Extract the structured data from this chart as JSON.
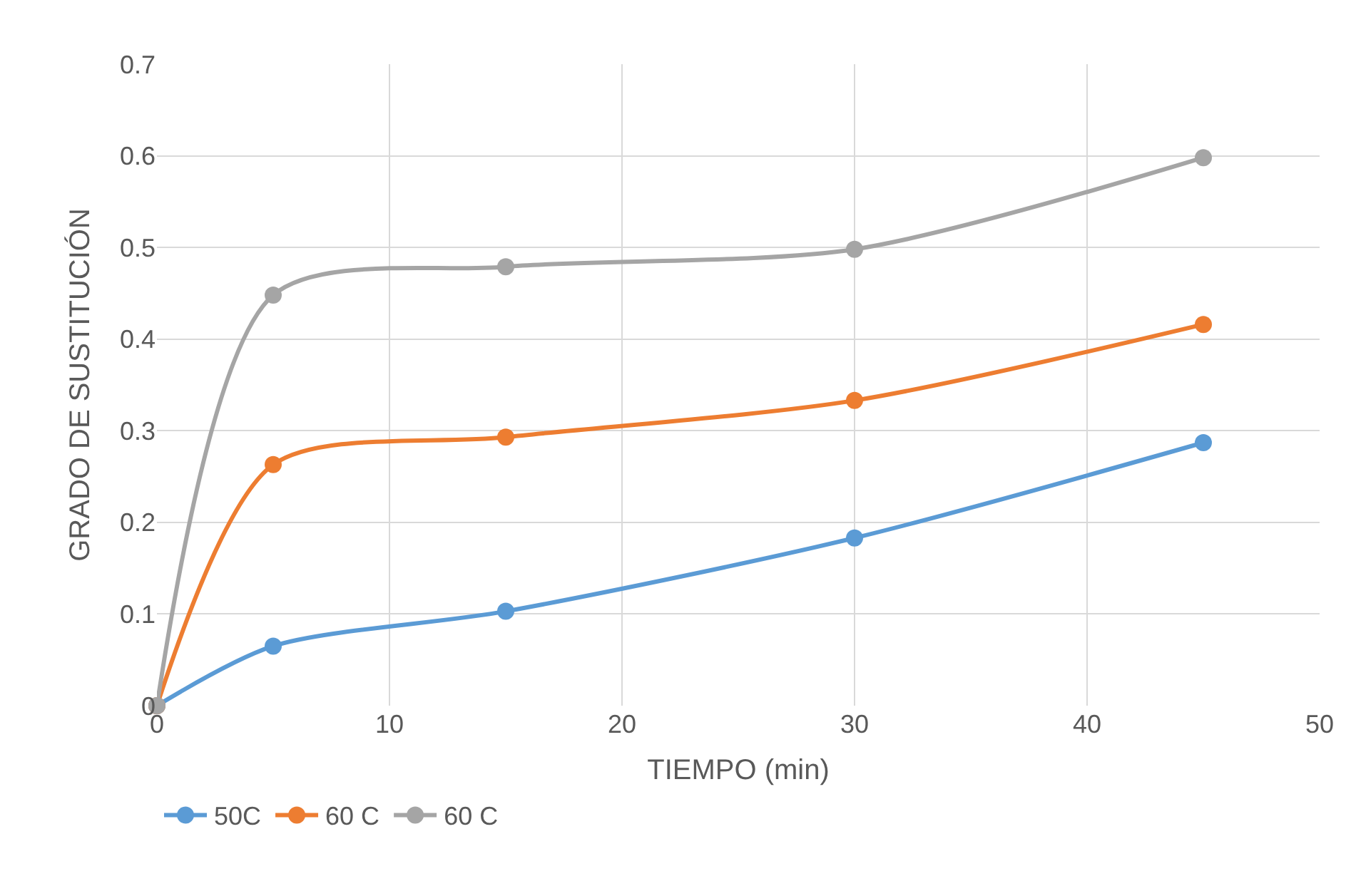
{
  "chart_data": {
    "type": "line",
    "xlabel": "TIEMPO (min)",
    "ylabel": "GRADO DE SUSTITUCIÓN",
    "x": [
      0,
      5,
      15,
      30,
      45
    ],
    "series": [
      {
        "name": "50C",
        "color": "#5b9bd5",
        "values": [
          0,
          0.065,
          0.103,
          0.183,
          0.287
        ]
      },
      {
        "name": "60 C",
        "color": "#ed7d31",
        "values": [
          0,
          0.263,
          0.293,
          0.333,
          0.416
        ]
      },
      {
        "name": "60 C",
        "color": "#a5a5a5",
        "values": [
          0,
          0.448,
          0.479,
          0.498,
          0.598
        ]
      }
    ],
    "xlim": [
      0,
      50
    ],
    "xticks": [
      0,
      10,
      20,
      30,
      40,
      50
    ],
    "ylim": [
      0,
      0.7
    ],
    "yticks": [
      0,
      0.1,
      0.2,
      0.3,
      0.4,
      0.5,
      0.6,
      0.7
    ],
    "grid": true,
    "legend": "bottom left",
    "marker": "circle",
    "line_style": "solid"
  }
}
